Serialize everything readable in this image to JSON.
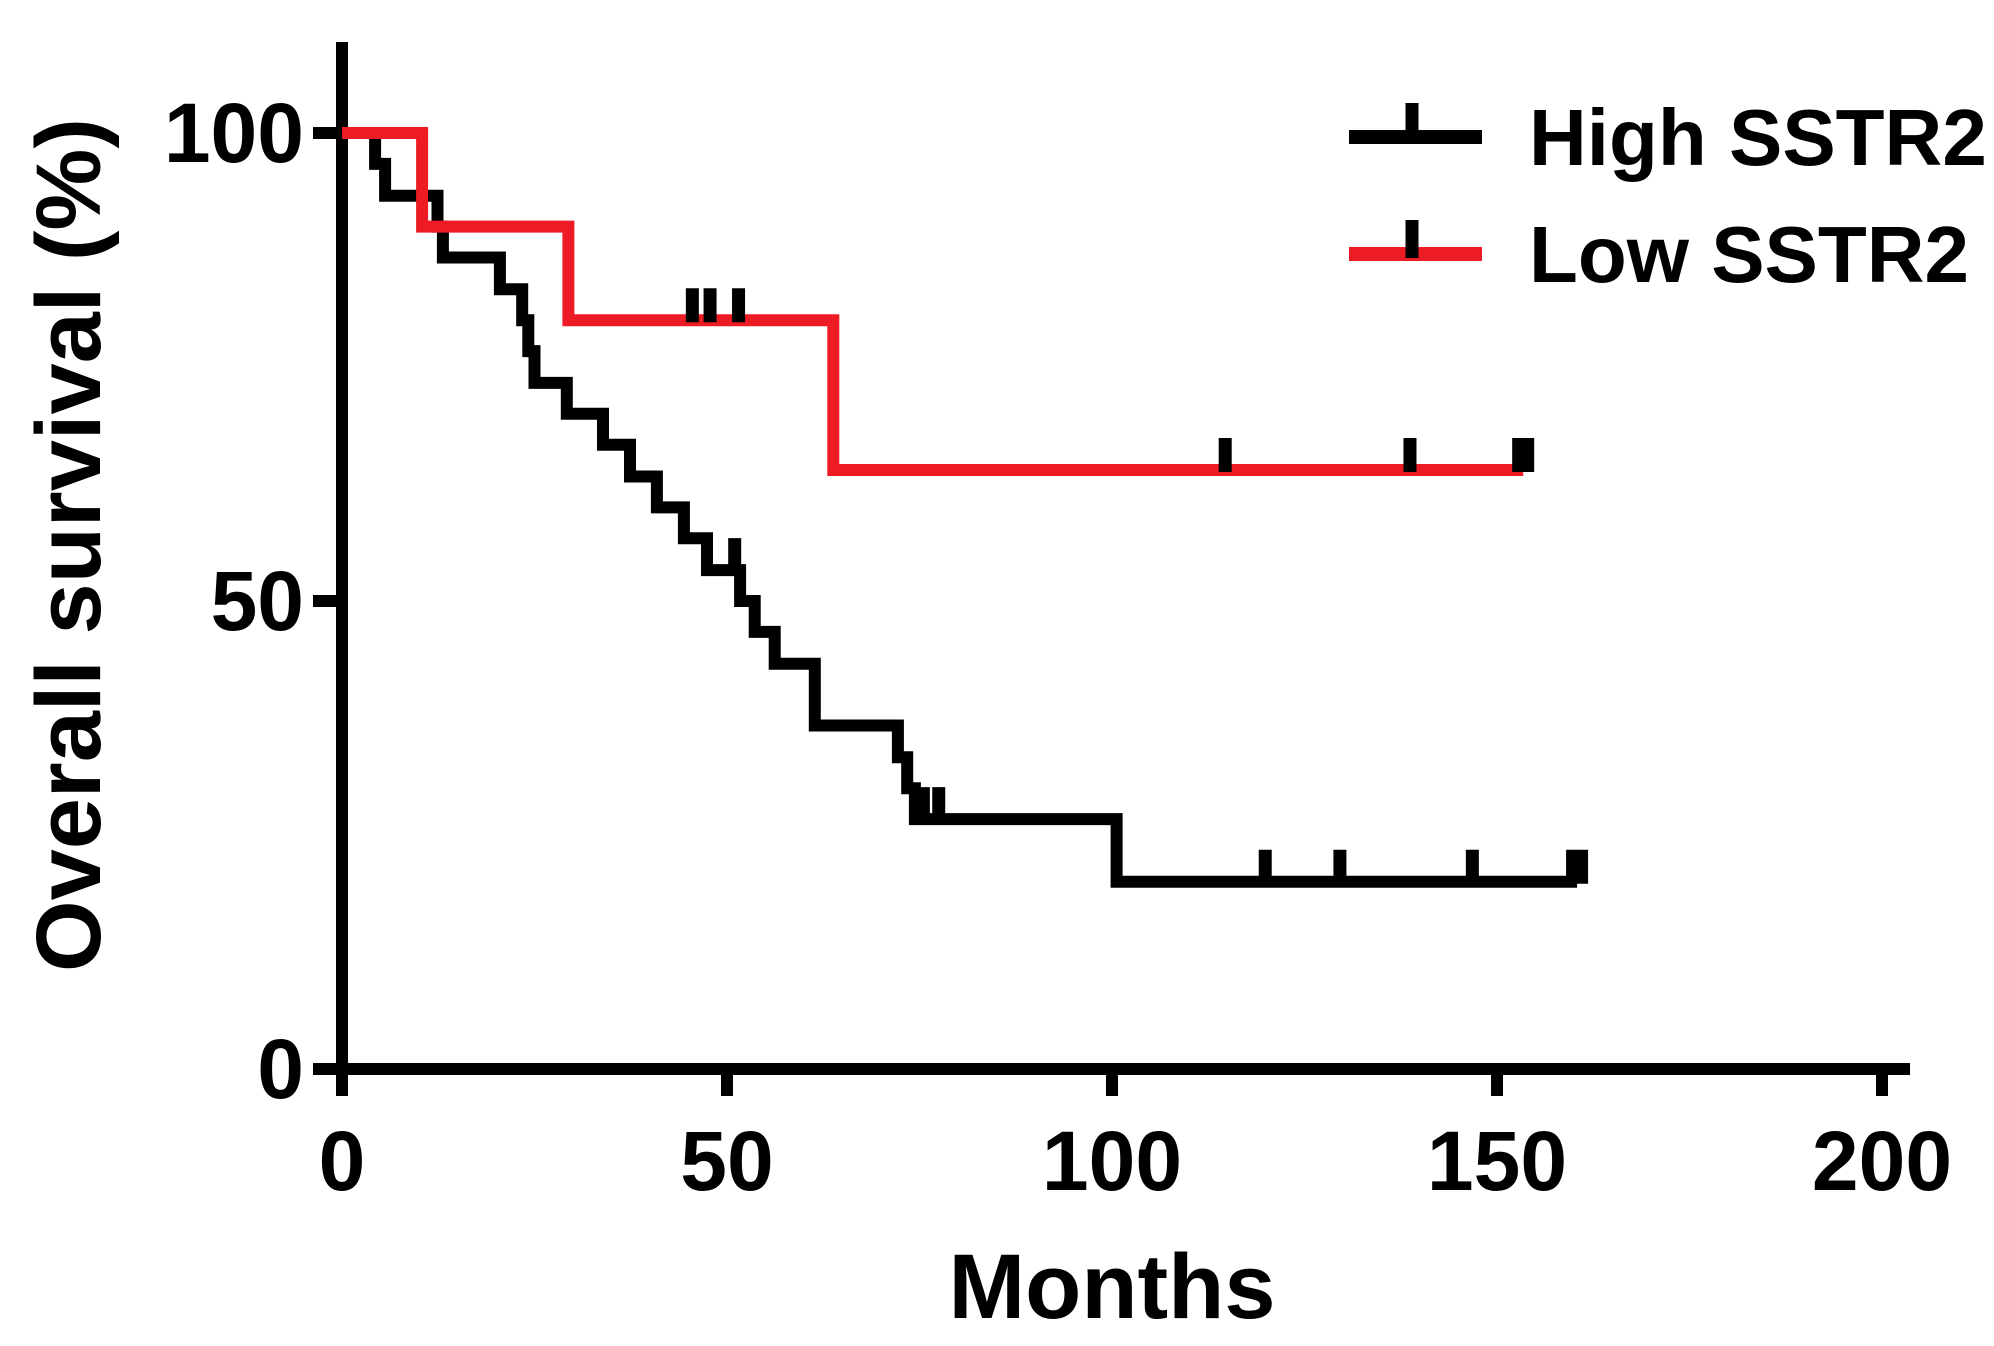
{
  "figure": {
    "background": "#ffffff",
    "description": "Kaplan-Meier overall survival curves comparing High SSTR2 and Low SSTR2 groups"
  },
  "chart_data": {
    "type": "line",
    "subtype": "kaplan-meier-step",
    "title": "",
    "xlabel": "Months",
    "ylabel": "Overall survival (%)",
    "xlim": [
      0,
      200
    ],
    "ylim": [
      0,
      110
    ],
    "xticks": [
      0,
      50,
      100,
      150,
      200
    ],
    "yticks": [
      0,
      50,
      100
    ],
    "grid": false,
    "legend_position": "top-right",
    "censor_color": "#000000",
    "series": [
      {
        "name": "High SSTR2",
        "color": "#000000",
        "points": [
          [
            0,
            100
          ],
          [
            4.3,
            100
          ],
          [
            4.3,
            96.7
          ],
          [
            5.6,
            96.7
          ],
          [
            5.6,
            93.3
          ],
          [
            12.4,
            93.3
          ],
          [
            12.4,
            90
          ],
          [
            13.1,
            90
          ],
          [
            13.1,
            86.7
          ],
          [
            20.5,
            86.7
          ],
          [
            20.5,
            83.3
          ],
          [
            23.4,
            83.3
          ],
          [
            23.4,
            80
          ],
          [
            24.2,
            80
          ],
          [
            24.2,
            76.7
          ],
          [
            25,
            76.7
          ],
          [
            25,
            73.3
          ],
          [
            29.2,
            73.3
          ],
          [
            29.2,
            70
          ],
          [
            33.9,
            70
          ],
          [
            33.9,
            66.7
          ],
          [
            37.4,
            66.7
          ],
          [
            37.4,
            63.3
          ],
          [
            40.9,
            63.3
          ],
          [
            40.9,
            60
          ],
          [
            44.4,
            60
          ],
          [
            44.4,
            56.7
          ],
          [
            47.4,
            56.7
          ],
          [
            47.4,
            53.3
          ],
          [
            51.7,
            53.3
          ],
          [
            51.7,
            50
          ],
          [
            53.6,
            50
          ],
          [
            53.6,
            46.7
          ],
          [
            56.2,
            46.7
          ],
          [
            56.2,
            43.3
          ],
          [
            61.4,
            43.3
          ],
          [
            61.4,
            36.7
          ],
          [
            72.2,
            36.7
          ],
          [
            72.2,
            33.3
          ],
          [
            73.4,
            33.3
          ],
          [
            73.4,
            30
          ],
          [
            74.4,
            30
          ],
          [
            74.4,
            26.7
          ],
          [
            100.6,
            26.7
          ],
          [
            100.6,
            20
          ],
          [
            160.4,
            20
          ]
        ],
        "censors": [
          {
            "t": 51,
            "s": 53.3
          },
          {
            "t": 75.5,
            "s": 26.7
          },
          {
            "t": 77.5,
            "s": 26.7
          },
          {
            "t": 119.9,
            "s": 20
          },
          {
            "t": 129.6,
            "s": 20
          },
          {
            "t": 146.8,
            "s": 20
          },
          {
            "t": 160.4,
            "s": 20,
            "w": 1
          }
        ]
      },
      {
        "name": "Low SSTR2",
        "color": "#ED1C24",
        "points": [
          [
            0,
            100
          ],
          [
            10.4,
            100
          ],
          [
            10.4,
            90
          ],
          [
            29.4,
            90
          ],
          [
            29.4,
            80
          ],
          [
            63.8,
            80
          ],
          [
            63.8,
            64
          ],
          [
            153.4,
            64
          ]
        ],
        "censors": [
          {
            "t": 45.5,
            "s": 80
          },
          {
            "t": 47.8,
            "s": 80
          },
          {
            "t": 51.5,
            "s": 80
          },
          {
            "t": 114.7,
            "s": 64
          },
          {
            "t": 138.7,
            "s": 64
          },
          {
            "t": 153.4,
            "s": 64,
            "w": 1
          }
        ]
      }
    ]
  }
}
